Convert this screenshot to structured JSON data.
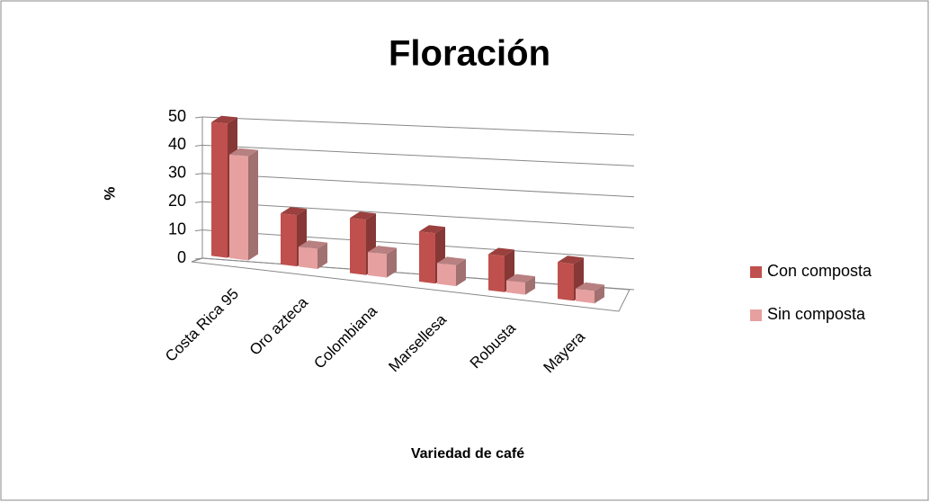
{
  "chart_data": {
    "type": "bar3d",
    "title": "Floración",
    "y_label": "%",
    "x_label": "Variedad de café",
    "categories": [
      "Costa Rica 95",
      "Oro azteca",
      "Colombiana",
      "Marsellesa",
      "Robusta",
      "Mayera"
    ],
    "series": [
      {
        "name": "Con composta",
        "color": "#c0504d",
        "values": [
          48,
          18,
          19,
          17,
          12,
          12
        ]
      },
      {
        "name": "Sin  composta",
        "color": "#e6a0a0",
        "values": [
          37,
          7,
          8,
          7,
          4,
          4
        ]
      }
    ],
    "ylim": [
      0,
      50
    ],
    "yticks": [
      0,
      10,
      20,
      30,
      40,
      50
    ],
    "grid": true,
    "legend": "right"
  }
}
